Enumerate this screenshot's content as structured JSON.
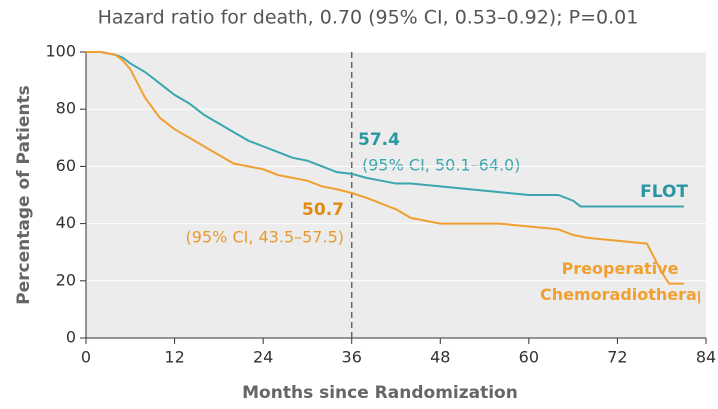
{
  "chart_data": {
    "type": "line",
    "title": "Hazard ratio for death, 0.70 (95% CI, 0.53–0.92); P=0.01",
    "xlabel": "Months since Randomization",
    "ylabel": "Percentage of Patients",
    "xlim": [
      0,
      84
    ],
    "xticks": [
      0,
      12,
      24,
      36,
      48,
      60,
      72,
      84
    ],
    "ylim": [
      0,
      100
    ],
    "yticks": [
      0,
      20,
      40,
      60,
      80,
      100
    ],
    "grid": true,
    "reference_x": 36,
    "annotations": [
      {
        "text": "57.4",
        "sub": "(95% CI, 50.1–64.0)"
      },
      {
        "text": "50.7",
        "sub": "(95% CI, 43.5–57.5)"
      }
    ],
    "series": [
      {
        "name": "FLOT",
        "color": "#3aa6b0",
        "x": [
          0,
          2,
          4,
          5,
          6,
          8,
          10,
          12,
          14,
          16,
          18,
          20,
          22,
          24,
          26,
          28,
          30,
          32,
          34,
          36,
          38,
          40,
          42,
          44,
          48,
          52,
          56,
          60,
          64,
          66,
          67,
          72,
          78,
          81
        ],
        "values": [
          100,
          100,
          99,
          98,
          96,
          93,
          89,
          85,
          82,
          78,
          75,
          72,
          69,
          67,
          65,
          63,
          62,
          60,
          58,
          57.4,
          56,
          55,
          54,
          54,
          53,
          52,
          51,
          50,
          50,
          48,
          46,
          46,
          46,
          46
        ]
      },
      {
        "name": "Preoperative Chemoradiotherapy",
        "color": "#f0a030",
        "x": [
          0,
          2,
          4,
          5,
          6,
          7,
          8,
          10,
          12,
          14,
          16,
          18,
          20,
          22,
          24,
          26,
          28,
          30,
          32,
          34,
          36,
          38,
          40,
          42,
          44,
          48,
          52,
          56,
          60,
          64,
          66,
          68,
          72,
          76,
          78,
          79,
          81
        ],
        "values": [
          100,
          100,
          99,
          97,
          94,
          89,
          84,
          77,
          73,
          70,
          67,
          64,
          61,
          60,
          59,
          57,
          56,
          55,
          53,
          52,
          50.7,
          49,
          47,
          45,
          42,
          40,
          40,
          40,
          39,
          38,
          36,
          35,
          34,
          33,
          23,
          19,
          19
        ]
      }
    ]
  }
}
